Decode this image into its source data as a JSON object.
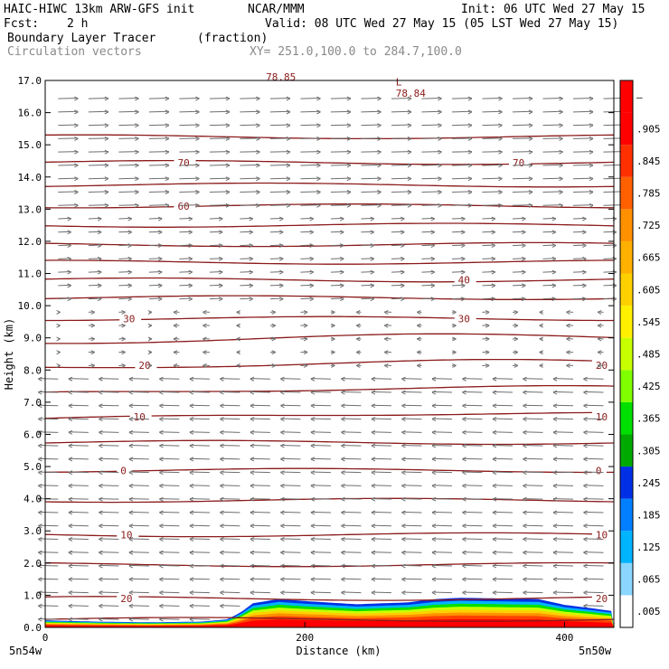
{
  "header": {
    "model": "HAIC-HIWC 13km ARW-GFS init",
    "org": "NCAR/MMM",
    "init": "Init: 06 UTC Wed 27 May 15",
    "fcst_label": "Fcst:",
    "fcst_value": "2 h",
    "valid": "Valid: 08 UTC Wed 27 May 15 (05 LST Wed 27 May 15)",
    "field": "Boundary Layer Tracer",
    "units": "(fraction)",
    "vectors": "Circulation vectors",
    "xy": "XY= 251.0,100.0 to 284.7,100.0"
  },
  "chart_data": {
    "type": "contour",
    "xlabel": "Distance (km)",
    "ylabel": "Height (km)",
    "xlim": [
      0,
      438
    ],
    "ylim": [
      0,
      17
    ],
    "x_ticks": [
      0,
      200,
      400
    ],
    "x_tick_labels": [
      "0",
      "200",
      "400"
    ],
    "y_ticks": [
      0,
      1,
      2,
      3,
      4,
      5,
      6,
      7,
      8,
      9,
      10,
      11,
      12,
      13,
      14,
      15,
      16,
      17
    ],
    "y_tick_labels": [
      "0.0",
      "1.0",
      "2.0",
      "3.0",
      "4.0",
      "5.0",
      "6.0",
      "7.0",
      "8.0",
      "9.0",
      "10.0",
      "11.0",
      "12.0",
      "13.0",
      "14.0",
      "15.0",
      "16.0",
      "17.0"
    ],
    "endpoint_labels": [
      "5n54w",
      "5n50w"
    ],
    "temperature_contours": [
      {
        "height": 0.25,
        "label": "",
        "label_positions": []
      },
      {
        "height": 0.9,
        "label": "20",
        "label_positions": [
          58,
          424
        ]
      },
      {
        "height": 1.95,
        "label": "",
        "label_positions": []
      },
      {
        "height": 2.88,
        "label": "10",
        "label_positions": [
          58,
          424
        ]
      },
      {
        "height": 3.95,
        "label": "",
        "label_positions": []
      },
      {
        "height": 4.88,
        "label": "0",
        "label_positions": [
          58,
          424
        ]
      },
      {
        "height": 5.75,
        "label": "",
        "label_positions": []
      },
      {
        "height": 6.55,
        "label": "10",
        "label_positions": [
          68,
          424
        ]
      },
      {
        "height": 7.35,
        "label": "",
        "label_positions": []
      },
      {
        "height": 8.15,
        "label": "20",
        "label_positions": [
          72,
          424
        ]
      },
      {
        "height": 8.95,
        "label": "",
        "label_positions": []
      },
      {
        "height": 9.6,
        "label": "30",
        "label_positions": [
          60,
          318
        ]
      },
      {
        "height": 10.25,
        "label": "",
        "label_positions": []
      },
      {
        "height": 10.8,
        "label": "40",
        "label_positions": [
          318
        ]
      },
      {
        "height": 11.35,
        "label": "",
        "label_positions": []
      },
      {
        "height": 11.9,
        "label": "",
        "label_positions": []
      },
      {
        "height": 12.5,
        "label": "",
        "label_positions": []
      },
      {
        "height": 13.1,
        "label": "60",
        "label_positions": [
          102
        ]
      },
      {
        "height": 13.75,
        "label": "",
        "label_positions": []
      },
      {
        "height": 14.45,
        "label": "70",
        "label_positions": [
          102,
          360
        ]
      },
      {
        "height": 15.25,
        "label": "",
        "label_positions": []
      }
    ],
    "annotations": [
      {
        "text": "L",
        "x": 270,
        "y": 16.85
      },
      {
        "text": "78.84",
        "x": 270,
        "y": 16.5
      },
      {
        "text": "78.85",
        "x": 170,
        "y": 17.0
      }
    ],
    "tracer_layer": {
      "x": [
        0,
        40,
        80,
        120,
        140,
        150,
        160,
        180,
        200,
        240,
        280,
        300,
        320,
        350,
        380,
        400,
        420,
        438
      ],
      "top_km": [
        0.22,
        0.18,
        0.16,
        0.18,
        0.25,
        0.45,
        0.75,
        0.88,
        0.82,
        0.72,
        0.78,
        0.88,
        0.92,
        0.9,
        0.88,
        0.7,
        0.6,
        0.5
      ]
    },
    "colorbar": {
      "labels": [
        ".005",
        ".065",
        ".125",
        ".185",
        ".245",
        ".305",
        ".365",
        ".425",
        ".485",
        ".545",
        ".605",
        ".665",
        ".725",
        ".785",
        ".845",
        ".905",
        "–"
      ],
      "colors": [
        "#ffffff",
        "#8ad6ff",
        "#00b4ff",
        "#0080ff",
        "#0030e6",
        "#00aa00",
        "#00e000",
        "#7fff00",
        "#c8ff00",
        "#fff000",
        "#ffd000",
        "#ffb000",
        "#ff9000",
        "#ff6000",
        "#ff3000",
        "#ff0000",
        "#ff0000"
      ]
    },
    "colors": {
      "contour": "#8b1a1a",
      "vector": "#6e6e6e",
      "frame": "#000000"
    }
  }
}
